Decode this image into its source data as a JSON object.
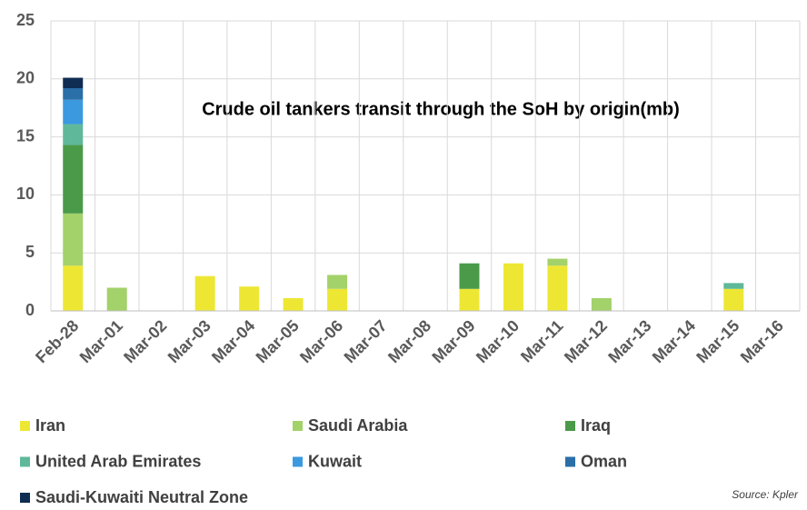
{
  "chart_data": {
    "type": "stacked-bar",
    "title": "Crude oil tankers transit through the SoH by origin(mb)",
    "source": "Source: Kpler",
    "categories": [
      "Feb-28",
      "Mar-01",
      "Mar-02",
      "Mar-03",
      "Mar-04",
      "Mar-05",
      "Mar-06",
      "Mar-07",
      "Mar-08",
      "Mar-09",
      "Mar-10",
      "Mar-11",
      "Mar-12",
      "Mar-13",
      "Mar-14",
      "Mar-15",
      "Mar-16"
    ],
    "series": [
      {
        "name": "Iran",
        "color": "#ede734",
        "values": [
          3.9,
          0,
          0,
          3.0,
          2.1,
          1.1,
          1.9,
          0,
          0,
          1.9,
          4.1,
          3.9,
          0,
          0,
          0,
          1.9,
          0
        ]
      },
      {
        "name": "Saudi Arabia",
        "color": "#a3d16a",
        "values": [
          4.5,
          2.0,
          0,
          0,
          0,
          0,
          1.2,
          0,
          0,
          0,
          0,
          0.6,
          1.1,
          0,
          0,
          0,
          0
        ]
      },
      {
        "name": "Iraq",
        "color": "#4a9a4a",
        "values": [
          5.9,
          0,
          0,
          0,
          0,
          0,
          0,
          0,
          0,
          2.2,
          0,
          0,
          0,
          0,
          0,
          0,
          0
        ]
      },
      {
        "name": "United Arab Emirates",
        "color": "#5fb89a",
        "values": [
          1.8,
          0,
          0,
          0,
          0,
          0,
          0,
          0,
          0,
          0,
          0,
          0,
          0,
          0,
          0,
          0.5,
          0
        ]
      },
      {
        "name": "Kuwait",
        "color": "#3b99e0",
        "values": [
          2.1,
          0,
          0,
          0,
          0,
          0,
          0,
          0,
          0,
          0,
          0,
          0,
          0,
          0,
          0,
          0,
          0
        ]
      },
      {
        "name": "Oman",
        "color": "#2a6fa8",
        "values": [
          1.0,
          0,
          0,
          0,
          0,
          0,
          0,
          0,
          0,
          0,
          0,
          0,
          0,
          0,
          0,
          0,
          0
        ]
      },
      {
        "name": "Saudi-Kuwaiti Neutral Zone",
        "color": "#0f2d52",
        "values": [
          0.9,
          0,
          0,
          0,
          0,
          0,
          0,
          0,
          0,
          0,
          0,
          0,
          0,
          0,
          0,
          0,
          0
        ]
      }
    ],
    "ylim": [
      0,
      25
    ],
    "yticks": [
      0,
      5,
      10,
      15,
      20,
      25
    ],
    "grid": true
  }
}
